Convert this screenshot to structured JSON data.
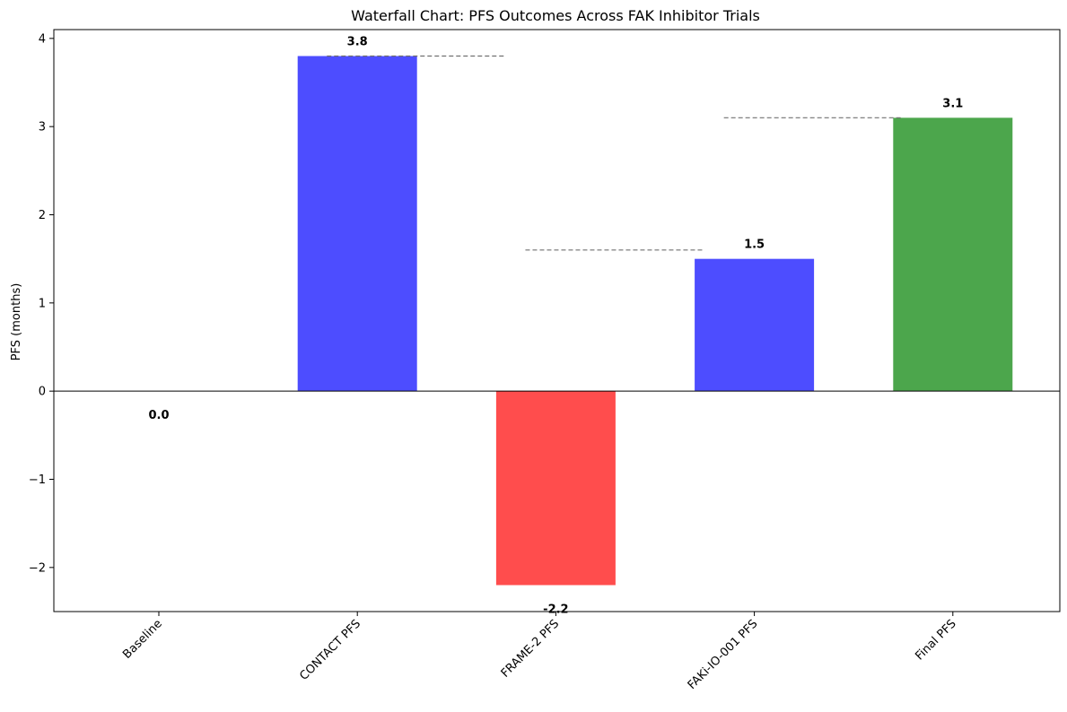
{
  "chart_data": {
    "type": "bar",
    "title": "Waterfall Chart: PFS Outcomes Across FAK Inhibitor Trials",
    "xlabel": "",
    "ylabel": "PFS (months)",
    "categories": [
      "Baseline",
      "CONTACT PFS",
      "FRAME-2 PFS",
      "FAKi-IO-001 PFS",
      "Final PFS"
    ],
    "values": [
      0.0,
      3.8,
      -2.2,
      1.5,
      3.1
    ],
    "value_labels": [
      "0.0",
      "3.8",
      "-2.2",
      "1.5",
      "3.1"
    ],
    "bar_colors": [
      "#4d4dff",
      "#4d4dff",
      "#ff4d4d",
      "#4d4dff",
      "#4ca64c"
    ],
    "ylim": [
      -2.5,
      4.1
    ],
    "yticks": [
      -2,
      -1,
      0,
      1,
      2,
      3,
      4
    ],
    "ytick_labels": [
      "−2",
      "−1",
      "0",
      "1",
      "2",
      "3",
      "4"
    ],
    "connectors": [
      {
        "from": 1,
        "to": 2,
        "y": 3.8
      },
      {
        "from": 2,
        "to": 3,
        "y": 1.6
      },
      {
        "from": 3,
        "to": 4,
        "y": 3.1
      }
    ],
    "zero_line": true,
    "grid": false,
    "legend": "none"
  }
}
